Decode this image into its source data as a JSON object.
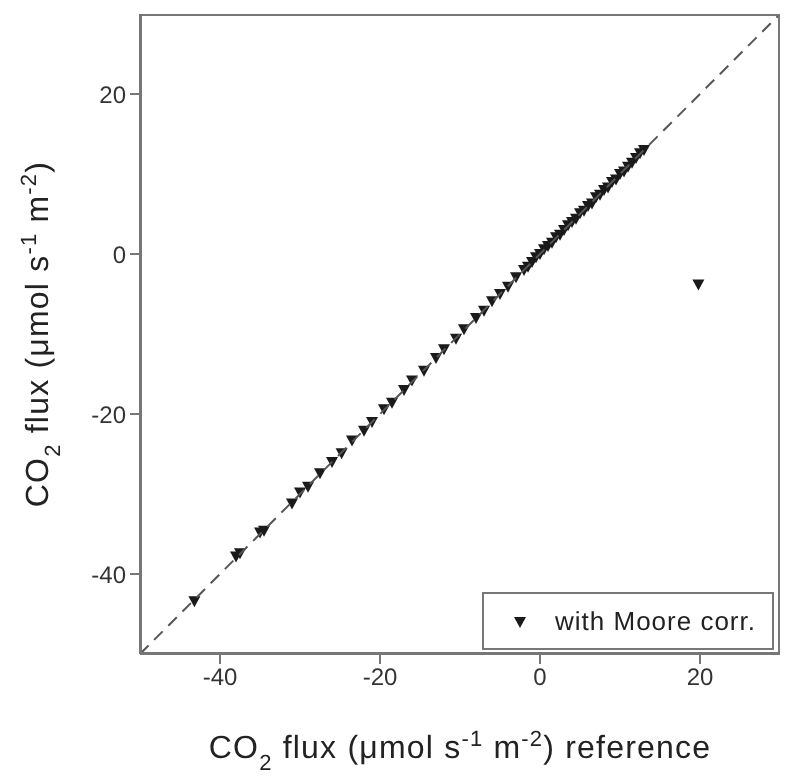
{
  "chart_data": {
    "type": "scatter",
    "xlabel": "CO$_{2}$ flux (μmol s$^{-1}$ m$^{-2}$) reference",
    "ylabel": "CO$_{2}$ flux (μmol s$^{-1}$ m$^{-2}$)",
    "xlim": [
      -50,
      30
    ],
    "ylim": [
      -50,
      30
    ],
    "xticks": [
      -40,
      -20,
      0,
      20
    ],
    "yticks": [
      -40,
      -20,
      0,
      20
    ],
    "legend": "bottom right",
    "series": [
      {
        "name": "with Moore corr.",
        "color": "#1a1a1a",
        "marker": "triangle",
        "x": [
          -43.2,
          -38,
          -37.5,
          -35,
          -34.5,
          -31,
          -30,
          -29,
          -27.5,
          -26,
          -24.8,
          -23.5,
          -22,
          -21,
          -19.5,
          -18.5,
          -17,
          -16,
          -14.5,
          -13,
          -12,
          -10.5,
          -9.5,
          -8,
          -7,
          -6,
          -5,
          -4,
          -3,
          -2,
          -1.5,
          -1,
          -0.5,
          0,
          0.5,
          1,
          1.5,
          2,
          2.5,
          3,
          3.5,
          4,
          4.5,
          5,
          5.5,
          6,
          6.5,
          7,
          7.5,
          8,
          8.5,
          9,
          9.5,
          10,
          10.5,
          11,
          11.5,
          12,
          12.5,
          13,
          19.8
        ],
        "values": [
          -43.4,
          -37.8,
          -37.4,
          -34.8,
          -34.6,
          -31.2,
          -29.8,
          -29.1,
          -27.4,
          -26,
          -24.9,
          -23.3,
          -22.1,
          -21,
          -19.4,
          -18.6,
          -17,
          -15.8,
          -14.6,
          -13,
          -11.9,
          -10.6,
          -9.4,
          -8,
          -7.1,
          -5.9,
          -5,
          -4.1,
          -2.9,
          -2,
          -1.6,
          -1,
          -0.4,
          0,
          0.6,
          1,
          1.4,
          2.1,
          2.4,
          3,
          3.6,
          4,
          4.4,
          5.1,
          5.4,
          6,
          6.3,
          7.1,
          7.4,
          8,
          8.3,
          9,
          9.3,
          10,
          10.3,
          10.9,
          11.4,
          12,
          12.6,
          13,
          -3.8
        ]
      },
      {
        "type": "line",
        "color": "#555555",
        "line_style": "dashed",
        "marker": "none",
        "x": [
          -50,
          30
        ],
        "values": [
          -50,
          30
        ]
      }
    ]
  }
}
